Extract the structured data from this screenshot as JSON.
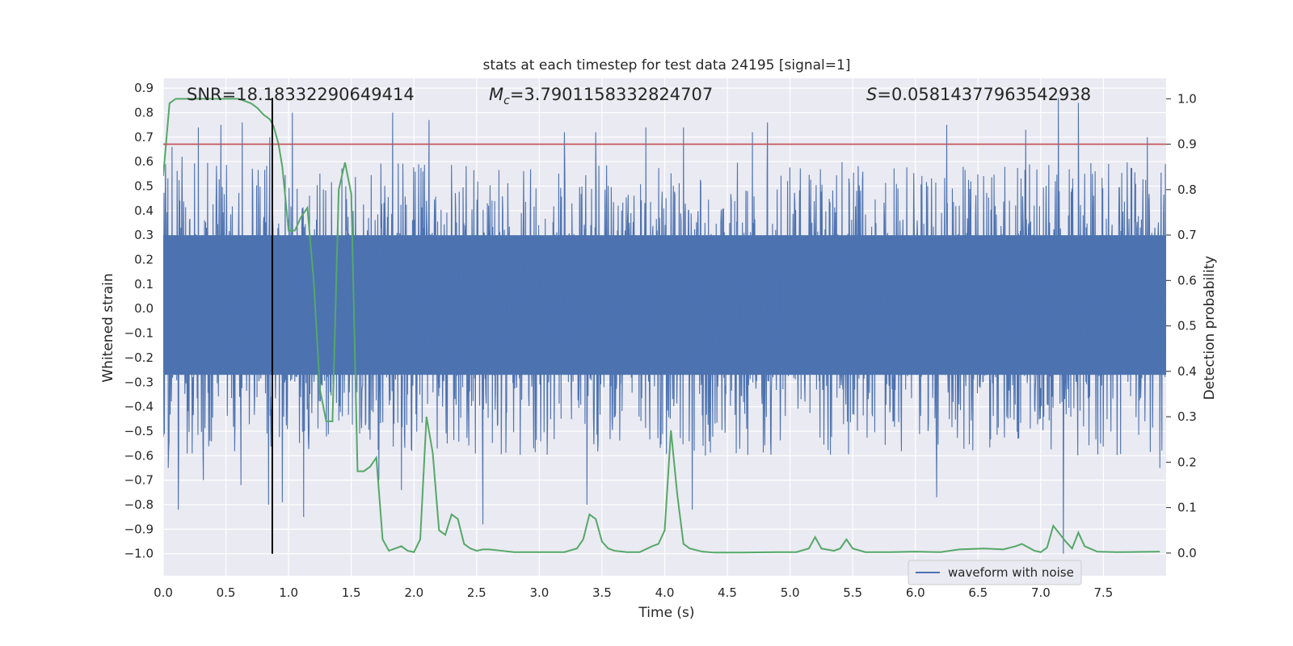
{
  "chart_data": {
    "type": "line",
    "title": "stats at each timestep for test data 24195 [signal=1]",
    "xlabel": "Time (s)",
    "ylabel_left": "Whitened strain",
    "ylabel_right": "Detection probability",
    "xlim": [
      0.0,
      8.0
    ],
    "ylim_left": [
      -1.09,
      0.94
    ],
    "ylim_right": [
      -0.05,
      1.045
    ],
    "x_ticks": [
      0.0,
      0.5,
      1.0,
      1.5,
      2.0,
      2.5,
      3.0,
      3.5,
      4.0,
      4.5,
      5.0,
      5.5,
      6.0,
      6.5,
      7.0,
      7.5
    ],
    "x_tick_labels": [
      "0.0",
      "0.5",
      "1.0",
      "1.5",
      "2.0",
      "2.5",
      "3.0",
      "3.5",
      "4.0",
      "4.5",
      "5.0",
      "5.5",
      "6.0",
      "6.5",
      "7.0",
      "7.5"
    ],
    "y_left_ticks": [
      0.9,
      0.8,
      0.7,
      0.6,
      0.5,
      0.4,
      0.3,
      0.2,
      0.1,
      0.0,
      -0.1,
      -0.2,
      -0.3,
      -0.4,
      -0.5,
      -0.6,
      -0.7,
      -0.8,
      -0.9,
      -1.0
    ],
    "y_left_tick_labels": [
      "0.9",
      "0.8",
      "0.7",
      "0.6",
      "0.5",
      "0.4",
      "0.3",
      "0.2",
      "0.1",
      "0.0",
      "−0.1",
      "−0.2",
      "−0.3",
      "−0.4",
      "−0.5",
      "−0.6",
      "−0.7",
      "−0.8",
      "−0.9",
      "−1.0"
    ],
    "y_right_ticks": [
      1.0,
      0.9,
      0.8,
      0.7,
      0.6,
      0.5,
      0.4,
      0.3,
      0.2,
      0.1,
      0.0
    ],
    "y_right_tick_labels": [
      "1.0",
      "0.9",
      "0.8",
      "0.7",
      "0.6",
      "0.5",
      "0.4",
      "0.3",
      "0.2",
      "0.1",
      "0.0"
    ],
    "annotations": {
      "snr": "SNR=18.18332290649414",
      "mc_symbol": "M",
      "mc_sub": "c",
      "mc_value": "=3.7901158332824707",
      "s_symbol": "S",
      "s_value": "=0.05814377963542938"
    },
    "threshold_probability": 0.9,
    "merger_time": 0.87,
    "merger_line_y_range": [
      -1.0,
      0.86
    ],
    "legend": {
      "label": "waveform with noise",
      "location": "lower right"
    },
    "colors": {
      "waveform": "#4c72b0",
      "probability": "#55a868",
      "threshold": "#c44e52",
      "merger": "#000000",
      "plot_background": "#eaeaf2",
      "grid": "#ffffff"
    },
    "waveform": {
      "name": "waveform with noise",
      "axis": "left",
      "duration_s": 8.0,
      "dense_envelope": [
        -0.27,
        0.3
      ],
      "typical_extremes": [
        -0.6,
        0.6
      ],
      "peak_max": [
        [
          0.07,
          0.66
        ],
        [
          0.15,
          0.62
        ],
        [
          0.28,
          0.74
        ],
        [
          0.46,
          0.75
        ],
        [
          0.63,
          0.76
        ],
        [
          0.85,
          0.7
        ],
        [
          1.03,
          0.8
        ],
        [
          1.83,
          0.8
        ],
        [
          2.12,
          0.77
        ],
        [
          3.2,
          0.72
        ],
        [
          3.45,
          0.72
        ],
        [
          3.85,
          0.74
        ],
        [
          4.15,
          0.74
        ],
        [
          4.7,
          0.72
        ],
        [
          4.82,
          0.76
        ],
        [
          6.25,
          0.75
        ],
        [
          6.88,
          0.73
        ],
        [
          7.14,
          0.86
        ],
        [
          7.3,
          0.84
        ],
        [
          7.85,
          0.7
        ]
      ],
      "peak_min": [
        [
          0.04,
          -0.65
        ],
        [
          0.12,
          -0.82
        ],
        [
          0.32,
          -0.7
        ],
        [
          0.62,
          -0.72
        ],
        [
          0.84,
          -0.8
        ],
        [
          0.95,
          -0.79
        ],
        [
          1.12,
          -0.85
        ],
        [
          1.72,
          -0.7
        ],
        [
          1.9,
          -0.74
        ],
        [
          2.55,
          -0.88
        ],
        [
          3.38,
          -0.8
        ],
        [
          4.22,
          -0.82
        ],
        [
          6.17,
          -0.77
        ],
        [
          7.18,
          -1.0
        ],
        [
          7.95,
          -0.65
        ]
      ]
    },
    "probability": {
      "name": "detection probability",
      "axis": "right",
      "x": [
        0.0,
        0.05,
        0.1,
        0.15,
        0.2,
        0.3,
        0.4,
        0.5,
        0.6,
        0.7,
        0.75,
        0.8,
        0.85,
        0.88,
        0.92,
        0.95,
        1.0,
        1.05,
        1.1,
        1.15,
        1.2,
        1.25,
        1.3,
        1.35,
        1.4,
        1.45,
        1.5,
        1.55,
        1.6,
        1.65,
        1.7,
        1.75,
        1.8,
        1.9,
        1.95,
        2.0,
        2.05,
        2.1,
        2.15,
        2.2,
        2.25,
        2.3,
        2.35,
        2.4,
        2.45,
        2.5,
        2.55,
        2.6,
        2.7,
        2.8,
        3.0,
        3.2,
        3.3,
        3.35,
        3.4,
        3.45,
        3.5,
        3.55,
        3.6,
        3.7,
        3.8,
        3.9,
        3.95,
        4.0,
        4.05,
        4.1,
        4.15,
        4.2,
        4.3,
        4.4,
        4.6,
        4.9,
        5.05,
        5.15,
        5.2,
        5.25,
        5.35,
        5.4,
        5.45,
        5.5,
        5.6,
        5.8,
        6.0,
        6.2,
        6.35,
        6.55,
        6.7,
        6.8,
        6.85,
        6.95,
        7.0,
        7.05,
        7.1,
        7.2,
        7.25,
        7.3,
        7.35,
        7.45,
        7.6,
        7.95
      ],
      "y": [
        0.83,
        0.99,
        1.0,
        1.0,
        1.0,
        1.0,
        1.0,
        1.0,
        1.0,
        0.99,
        0.98,
        0.965,
        0.955,
        0.94,
        0.9,
        0.85,
        0.71,
        0.71,
        0.74,
        0.76,
        0.6,
        0.36,
        0.29,
        0.29,
        0.8,
        0.86,
        0.79,
        0.18,
        0.18,
        0.19,
        0.21,
        0.03,
        0.005,
        0.015,
        0.005,
        0.002,
        0.03,
        0.3,
        0.22,
        0.05,
        0.04,
        0.085,
        0.075,
        0.02,
        0.01,
        0.005,
        0.008,
        0.008,
        0.005,
        0.002,
        0.002,
        0.002,
        0.01,
        0.03,
        0.085,
        0.075,
        0.025,
        0.01,
        0.005,
        0.002,
        0.002,
        0.015,
        0.02,
        0.05,
        0.27,
        0.13,
        0.02,
        0.01,
        0.003,
        0.001,
        0.001,
        0.002,
        0.002,
        0.01,
        0.035,
        0.01,
        0.005,
        0.01,
        0.03,
        0.01,
        0.002,
        0.002,
        0.003,
        0.002,
        0.008,
        0.01,
        0.008,
        0.015,
        0.02,
        0.005,
        0.002,
        0.012,
        0.06,
        0.025,
        0.01,
        0.045,
        0.015,
        0.003,
        0.002,
        0.003
      ]
    }
  }
}
